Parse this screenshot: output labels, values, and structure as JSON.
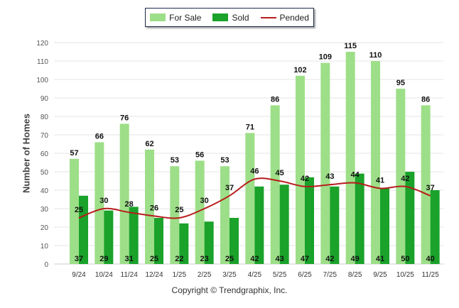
{
  "chart_data": {
    "type": "bar",
    "categories": [
      "9/24",
      "10/24",
      "11/24",
      "12/24",
      "1/25",
      "2/25",
      "3/25",
      "4/25",
      "5/25",
      "6/25",
      "7/25",
      "8/25",
      "9/25",
      "10/25",
      "11/25"
    ],
    "series": [
      {
        "name": "For Sale",
        "type": "bar",
        "color": "#9ddf88",
        "values": [
          57,
          66,
          76,
          62,
          53,
          56,
          53,
          71,
          86,
          102,
          109,
          115,
          110,
          95,
          86
        ]
      },
      {
        "name": "Sold",
        "type": "bar",
        "color": "#1aa22a",
        "values": [
          37,
          29,
          31,
          25,
          22,
          23,
          25,
          42,
          43,
          47,
          42,
          49,
          41,
          50,
          40
        ]
      },
      {
        "name": "Pended",
        "type": "line",
        "color": "#b71c1c",
        "values": [
          25,
          30,
          28,
          26,
          25,
          30,
          37,
          46,
          45,
          42,
          43,
          44,
          41,
          42,
          37
        ]
      }
    ],
    "ylabel": "Number of Homes",
    "xlabel": "",
    "ylim": [
      0,
      120
    ],
    "yticks": [
      0,
      10,
      20,
      30,
      40,
      50,
      60,
      70,
      80,
      90,
      100,
      110,
      120
    ],
    "legend_position": "top-center",
    "grid": true
  },
  "legend": {
    "for_sale": "For Sale",
    "sold": "Sold",
    "pended": "Pended"
  },
  "footer": {
    "copyright": "Copyright © Trendgraphix, Inc."
  }
}
